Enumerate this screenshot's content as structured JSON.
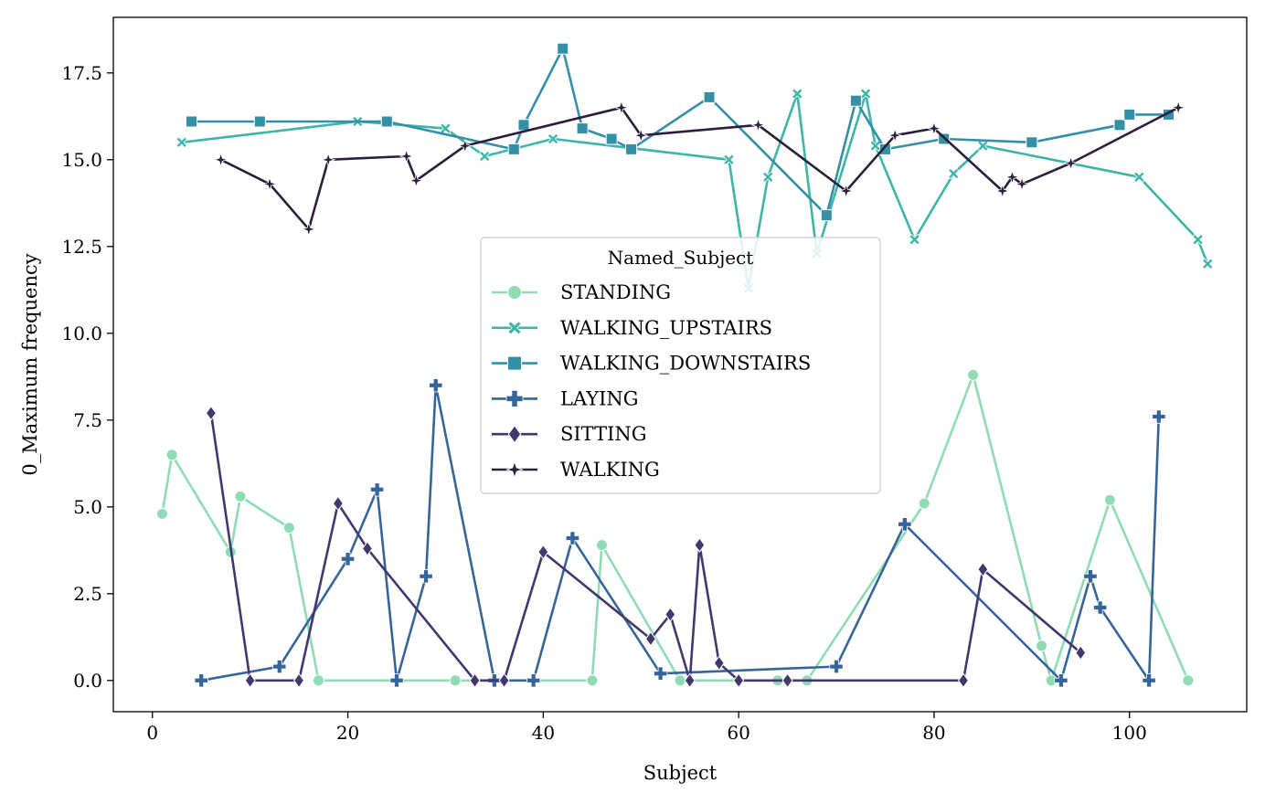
{
  "chart_data": {
    "type": "line",
    "xlabel": "Subject",
    "ylabel": "0_Maximum frequency",
    "xlim": [
      -4,
      112
    ],
    "ylim": [
      -0.9,
      19.1
    ],
    "xticks": [
      0,
      20,
      40,
      60,
      80,
      100
    ],
    "yticks": [
      0.0,
      2.5,
      5.0,
      7.5,
      10.0,
      12.5,
      15.0,
      17.5
    ],
    "xtick_labels": [
      "0",
      "20",
      "40",
      "60",
      "80",
      "100"
    ],
    "ytick_labels": [
      "0.0",
      "2.5",
      "5.0",
      "7.5",
      "10.0",
      "12.5",
      "15.0",
      "17.5"
    ],
    "grid": false,
    "legend": {
      "title": "Named_Subject",
      "placement": "center"
    },
    "series": [
      {
        "name": "STANDING",
        "color": "#8fdcb4",
        "marker": "circle",
        "points": [
          [
            1,
            4.8
          ],
          [
            2,
            6.5
          ],
          [
            8,
            3.7
          ],
          [
            9,
            5.3
          ],
          [
            14,
            4.4
          ],
          [
            17,
            0.0
          ],
          [
            31,
            0.0
          ],
          [
            45,
            0.0
          ],
          [
            46,
            3.9
          ],
          [
            54,
            0.0
          ],
          [
            64,
            0.0
          ],
          [
            67,
            0.0
          ],
          [
            79,
            5.1
          ],
          [
            84,
            8.8
          ],
          [
            91,
            1.0
          ],
          [
            92,
            0.0
          ],
          [
            98,
            5.2
          ],
          [
            106,
            0.0
          ]
        ]
      },
      {
        "name": "WALKING_UPSTAIRS",
        "color": "#3db5a8",
        "marker": "x",
        "points": [
          [
            3,
            15.5
          ],
          [
            21,
            16.1
          ],
          [
            30,
            15.9
          ],
          [
            34,
            15.1
          ],
          [
            41,
            15.6
          ],
          [
            59,
            15.0
          ],
          [
            61,
            11.3
          ],
          [
            63,
            14.5
          ],
          [
            66,
            16.9
          ],
          [
            68,
            12.3
          ],
          [
            73,
            16.9
          ],
          [
            74,
            15.4
          ],
          [
            78,
            12.7
          ],
          [
            82,
            14.6
          ],
          [
            85,
            15.4
          ],
          [
            101,
            14.5
          ],
          [
            107,
            12.7
          ],
          [
            108,
            12.0
          ]
        ]
      },
      {
        "name": "WALKING_DOWNSTAIRS",
        "color": "#3490a6",
        "marker": "square",
        "points": [
          [
            4,
            16.1
          ],
          [
            11,
            16.1
          ],
          [
            24,
            16.1
          ],
          [
            37,
            15.3
          ],
          [
            38,
            16.0
          ],
          [
            42,
            18.2
          ],
          [
            44,
            15.9
          ],
          [
            47,
            15.6
          ],
          [
            49,
            15.3
          ],
          [
            57,
            16.8
          ],
          [
            69,
            13.4
          ],
          [
            72,
            16.7
          ],
          [
            75,
            15.3
          ],
          [
            81,
            15.6
          ],
          [
            90,
            15.5
          ],
          [
            99,
            16.0
          ],
          [
            100,
            16.3
          ],
          [
            104,
            16.3
          ]
        ]
      },
      {
        "name": "LAYING",
        "color": "#35659a",
        "marker": "plus",
        "points": [
          [
            5,
            0.0
          ],
          [
            13,
            0.4
          ],
          [
            20,
            3.5
          ],
          [
            23,
            5.5
          ],
          [
            25,
            0.0
          ],
          [
            28,
            3.0
          ],
          [
            29,
            8.5
          ],
          [
            35,
            0.0
          ],
          [
            39,
            0.0
          ],
          [
            43,
            4.1
          ],
          [
            52,
            0.2
          ],
          [
            70,
            0.4
          ],
          [
            77,
            4.5
          ],
          [
            93,
            0.0
          ],
          [
            96,
            3.0
          ],
          [
            97,
            2.1
          ],
          [
            102,
            0.0
          ],
          [
            103,
            7.6
          ]
        ]
      },
      {
        "name": "SITTING",
        "color": "#40386e",
        "marker": "diamond",
        "points": [
          [
            6,
            7.7
          ],
          [
            10,
            0.0
          ],
          [
            15,
            0.0
          ],
          [
            19,
            5.1
          ],
          [
            22,
            3.8
          ],
          [
            33,
            0.0
          ],
          [
            36,
            0.0
          ],
          [
            40,
            3.7
          ],
          [
            51,
            1.2
          ],
          [
            53,
            1.9
          ],
          [
            55,
            0.0
          ],
          [
            56,
            3.9
          ],
          [
            58,
            0.5
          ],
          [
            60,
            0.0
          ],
          [
            65,
            0.0
          ],
          [
            83,
            0.0
          ],
          [
            85,
            3.2
          ],
          [
            95,
            0.8
          ]
        ]
      },
      {
        "name": "WALKING",
        "color": "#2c1e3c",
        "marker": "star",
        "points": [
          [
            7,
            15.0
          ],
          [
            12,
            14.3
          ],
          [
            16,
            13.0
          ],
          [
            18,
            15.0
          ],
          [
            26,
            15.1
          ],
          [
            27,
            14.4
          ],
          [
            32,
            15.4
          ],
          [
            48,
            16.5
          ],
          [
            50,
            15.7
          ],
          [
            62,
            16.0
          ],
          [
            71,
            14.1
          ],
          [
            76,
            15.7
          ],
          [
            80,
            15.9
          ],
          [
            87,
            14.1
          ],
          [
            88,
            14.5
          ],
          [
            89,
            14.3
          ],
          [
            94,
            14.9
          ],
          [
            105,
            16.5
          ]
        ]
      }
    ]
  }
}
